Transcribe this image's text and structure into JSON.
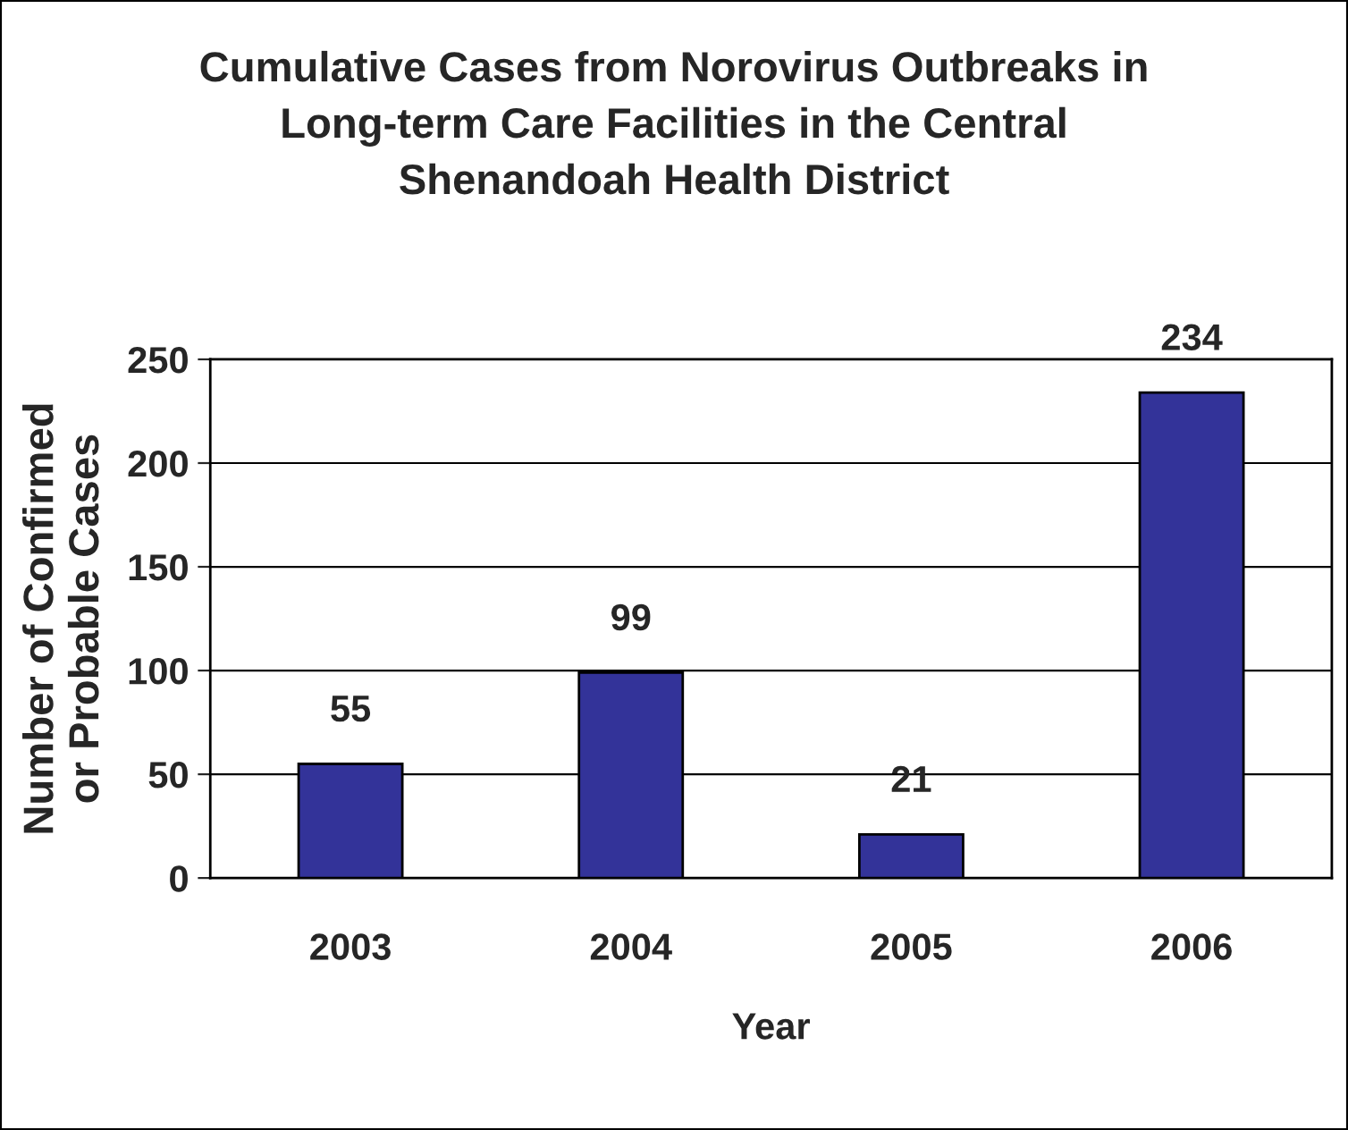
{
  "chart_data": {
    "type": "bar",
    "title": "Cumulative Cases from Norovirus Outbreaks in\nLong-term Care Facilities in the Central\nShenandoah Health District",
    "xlabel": "Year",
    "ylabel": "Number of Confirmed\nor Probable Cases",
    "categories": [
      "2003",
      "2004",
      "2005",
      "2006"
    ],
    "values": [
      55,
      99,
      21,
      234
    ],
    "color": "#333399",
    "data_labels": true,
    "ylim": [
      0,
      250
    ],
    "yticks": [
      0,
      50,
      100,
      150,
      200,
      250
    ],
    "grid": "y",
    "legend": false
  }
}
